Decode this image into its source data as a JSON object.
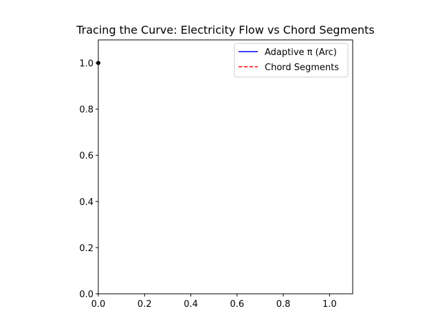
{
  "chart_data": {
    "type": "line",
    "title": "Tracing the Curve: Electricity Flow vs Chord Segments",
    "xlabel": "",
    "ylabel": "",
    "xlim": [
      0,
      1.1
    ],
    "ylim": [
      0,
      1.1
    ],
    "x_ticks": [
      0.0,
      0.2,
      0.4,
      0.6,
      0.8,
      1.0
    ],
    "y_ticks": [
      0.0,
      0.2,
      0.4,
      0.6,
      0.8,
      1.0
    ],
    "x_tick_labels": [
      "0.0",
      "0.2",
      "0.4",
      "0.6",
      "0.8",
      "1.0"
    ],
    "y_tick_labels": [
      "0.0",
      "0.2",
      "0.4",
      "0.6",
      "0.8",
      "1.0"
    ],
    "grid": false,
    "legend_position": "upper-right",
    "series": [
      {
        "name": "Adaptive π (Arc)",
        "color": "#0000ff",
        "style": "solid",
        "x": [],
        "y": []
      },
      {
        "name": "Chord Segments",
        "color": "#ff0000",
        "style": "dashed",
        "x": [],
        "y": []
      }
    ],
    "points": [
      {
        "x": 0.0,
        "y": 1.0,
        "color": "#000000"
      }
    ]
  }
}
